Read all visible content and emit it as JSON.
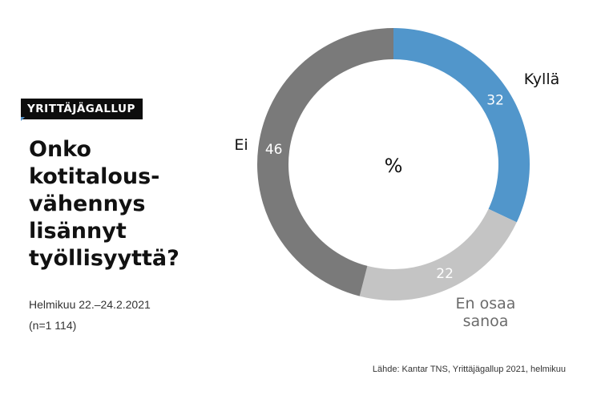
{
  "header": {
    "badge": "YRITTÄJÄGALLUP",
    "question": "Onko\nkotitalous-\nvähennys\nlisännyt\ntyöllisyyttä?",
    "date": "Helmikuu 22.–24.2.2021",
    "sample": "(n=1 114)"
  },
  "source": "Lähde: Kantar TNS, Yrittäjägallup 2021, helmikuu",
  "chart_data": {
    "type": "pie",
    "unit": "%",
    "categories": [
      "Kyllä",
      "En osaa sanoa",
      "Ei"
    ],
    "values": [
      32,
      22,
      46
    ],
    "colors": [
      "#5196cb",
      "#c4c4c4",
      "#7a7a7a"
    ]
  }
}
